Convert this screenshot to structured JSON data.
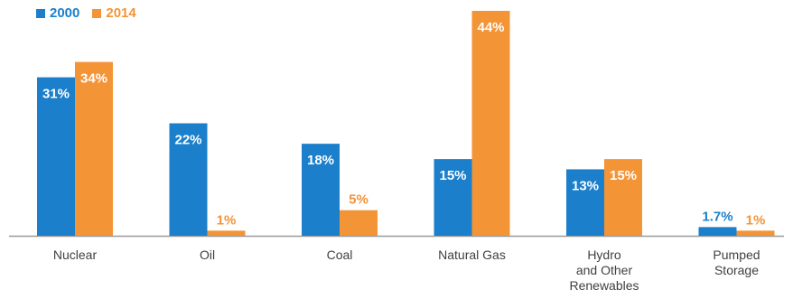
{
  "colors": {
    "s2000": "#1b7fcb",
    "s2014": "#f39437",
    "axis": "#9a9a9a"
  },
  "chart_data": {
    "type": "bar",
    "title": "",
    "xlabel": "",
    "ylabel": "",
    "ylim": [
      0,
      44
    ],
    "legend_position": "top-left",
    "categories": [
      [
        "Nuclear"
      ],
      [
        "Oil"
      ],
      [
        "Coal"
      ],
      [
        "Natural Gas"
      ],
      [
        "Hydro",
        "and Other",
        "Renewables"
      ],
      [
        "Pumped",
        "Storage"
      ]
    ],
    "series": [
      {
        "name": "2000",
        "values": [
          31,
          22,
          18,
          15,
          13,
          1.7
        ],
        "labels": [
          "31%",
          "22%",
          "18%",
          "15%",
          "13%",
          "1.7%"
        ]
      },
      {
        "name": "2014",
        "values": [
          34,
          1,
          5,
          44,
          15,
          1
        ],
        "labels": [
          "34%",
          "1%",
          "5%",
          "44%",
          "15%",
          "1%"
        ]
      }
    ]
  }
}
